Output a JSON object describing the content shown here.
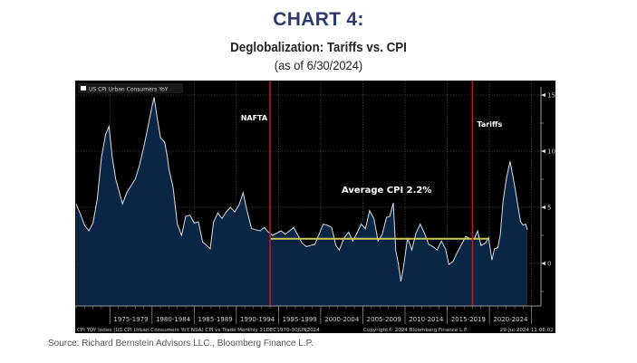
{
  "header": {
    "title": "CHART 4:",
    "subtitle": "Deglobalization: Tariffs vs. CPI",
    "as_of": "(as of 6/30/2024)"
  },
  "source": "Source: Richard Bernstein Advisors LLC., Bloomberg Finance L.P.",
  "terminal": {
    "footer_left": "CPI YOY Index (US CPI Urban Consumers YoY NSA) CPI vs Trade  Monthly 31DEC1970-30JUN2024",
    "footer_mid": "Copyright© 2024 Bloomberg Finance L.P.",
    "footer_right": "29-Jul-2024 11:06:02"
  },
  "colors": {
    "title": "#2e3a6e",
    "area_fill": "#0b2545",
    "line": "#d8dde6",
    "event_line": "#c0151c",
    "average_line": "#c8c85a",
    "panel_bg": "#000000"
  },
  "chart_data": {
    "type": "area",
    "title": "",
    "legend": [
      "US CPI Urban Consumers YoY"
    ],
    "legend_position": "top-left",
    "xlabel": "",
    "ylabel": "",
    "xlim": [
      1971,
      2024.5
    ],
    "ylim": [
      -3.7,
      15.7
    ],
    "yticks": [
      0,
      5,
      10,
      15
    ],
    "ytick_labels": [
      "0",
      "5",
      "10",
      "15"
    ],
    "y_axis_side": "right",
    "grid": true,
    "xtick_labels": [
      "1975-1979",
      "1980-1984",
      "1985-1989",
      "1990-1994",
      "1995-1999",
      "2000-2004",
      "2005-2009",
      "2010-2014",
      "2015-2019",
      "2020-2024"
    ],
    "xtick_boundaries": [
      1975,
      1980,
      1985,
      1990,
      1995,
      2000,
      2005,
      2010,
      2015,
      2020,
      2025
    ],
    "series": [
      {
        "name": "US CPI Urban Consumers YoY",
        "x": [
          1971.0,
          1971.5,
          1972.0,
          1972.5,
          1973.0,
          1973.5,
          1974.0,
          1974.5,
          1974.9,
          1975.3,
          1975.7,
          1976.0,
          1976.5,
          1977.0,
          1977.5,
          1978.0,
          1978.5,
          1979.0,
          1979.5,
          1980.0,
          1980.25,
          1980.6,
          1981.0,
          1981.5,
          1981.8,
          1982.0,
          1982.5,
          1983.0,
          1983.5,
          1984.0,
          1984.5,
          1985.0,
          1985.5,
          1986.0,
          1986.5,
          1986.9,
          1987.3,
          1987.8,
          1988.3,
          1988.8,
          1989.3,
          1989.8,
          1990.3,
          1990.8,
          1991.2,
          1991.8,
          1992.3,
          1992.8,
          1993.3,
          1993.8,
          1994.3,
          1994.8,
          1995.3,
          1995.8,
          1996.3,
          1996.8,
          1997.3,
          1997.8,
          1998.3,
          1998.8,
          1999.3,
          1999.8,
          2000.3,
          2000.8,
          2001.3,
          2001.8,
          2002.2,
          2002.8,
          2003.3,
          2003.8,
          2004.3,
          2004.8,
          2005.3,
          2005.8,
          2006.3,
          2006.8,
          2007.3,
          2007.8,
          2008.2,
          2008.6,
          2008.9,
          2009.2,
          2009.5,
          2009.8,
          2010.3,
          2010.8,
          2011.3,
          2011.8,
          2012.3,
          2012.8,
          2013.3,
          2013.8,
          2014.3,
          2014.8,
          2015.2,
          2015.7,
          2016.2,
          2016.7,
          2017.2,
          2017.7,
          2018.2,
          2018.6,
          2019.0,
          2019.5,
          2019.9,
          2020.3,
          2020.6,
          2021.0,
          2021.3,
          2021.6,
          2022.0,
          2022.45,
          2022.8,
          2023.1,
          2023.4,
          2023.7,
          2024.0,
          2024.3,
          2024.5
        ],
        "values": [
          5.3,
          4.4,
          3.4,
          2.9,
          3.6,
          5.7,
          9.4,
          11.5,
          12.2,
          9.4,
          7.5,
          6.7,
          5.3,
          6.3,
          6.9,
          7.5,
          8.7,
          10.3,
          12.1,
          14.0,
          14.8,
          13.0,
          11.2,
          10.8,
          9.6,
          8.4,
          6.8,
          3.5,
          2.5,
          4.2,
          4.3,
          3.6,
          3.7,
          1.9,
          1.6,
          1.3,
          3.7,
          4.5,
          4.0,
          4.6,
          5.0,
          4.6,
          5.2,
          6.3,
          4.9,
          3.1,
          3.0,
          2.9,
          3.2,
          2.8,
          2.5,
          2.7,
          2.9,
          2.6,
          2.9,
          3.2,
          2.5,
          1.8,
          1.5,
          1.6,
          1.7,
          2.6,
          3.5,
          3.4,
          3.2,
          1.6,
          1.2,
          2.3,
          2.8,
          2.0,
          2.7,
          3.5,
          3.1,
          4.7,
          4.0,
          2.0,
          2.6,
          4.1,
          4.2,
          5.4,
          1.1,
          0.0,
          -1.6,
          -0.4,
          2.3,
          1.2,
          2.7,
          3.5,
          2.7,
          1.7,
          1.5,
          1.2,
          2.0,
          1.3,
          -0.1,
          0.2,
          1.0,
          1.7,
          2.4,
          2.2,
          2.2,
          2.9,
          1.6,
          1.8,
          2.3,
          0.3,
          1.3,
          1.4,
          2.6,
          5.4,
          7.5,
          9.1,
          7.7,
          6.4,
          5.0,
          3.7,
          3.4,
          3.5,
          3.0
        ],
        "average": 2.2,
        "average_range": [
          1994,
          2020
        ]
      }
    ],
    "annotations": [
      {
        "label": "NAFTA",
        "x": 1994.0,
        "type": "vertical-line"
      },
      {
        "label": "Tariffs",
        "x": 2018.0,
        "type": "vertical-line"
      },
      {
        "label": "Average CPI 2.2%",
        "type": "text",
        "y": 6.6
      }
    ]
  }
}
